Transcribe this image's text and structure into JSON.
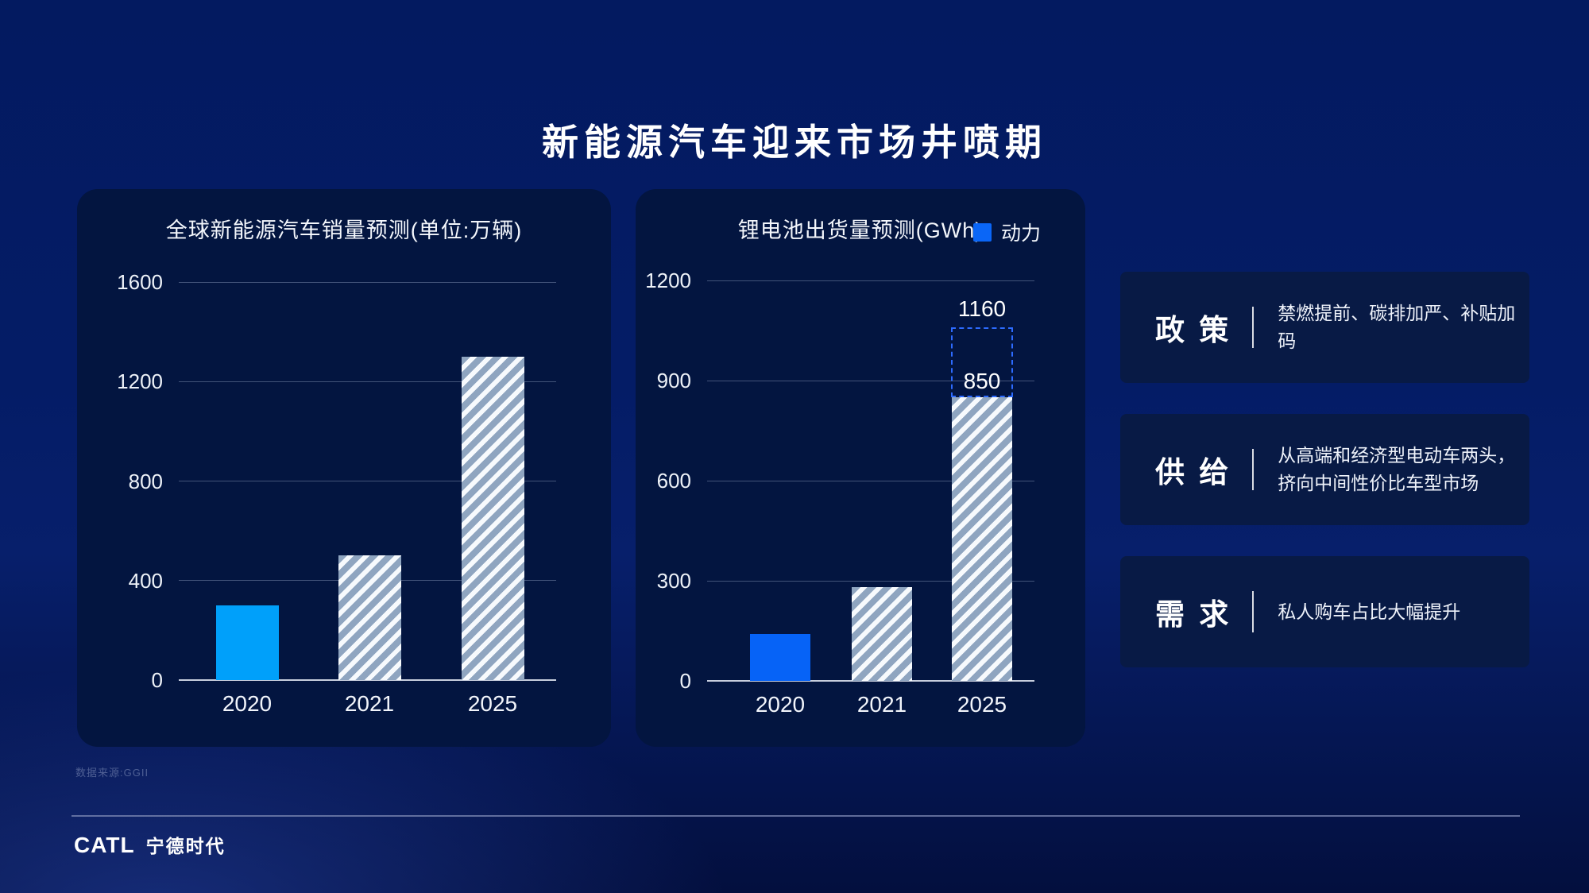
{
  "page": {
    "title": "新能源汽车迎来市场井喷期",
    "source_note": "数据来源:GGII",
    "logo": {
      "latin": "CATL",
      "cjk": "宁德时代"
    }
  },
  "chart_data": [
    {
      "type": "bar",
      "title": "全球新能源汽车销量预测(单位:万辆)",
      "categories": [
        "2020",
        "2021",
        "2025"
      ],
      "values": [
        300,
        500,
        1300
      ],
      "bar_styles": [
        "solid",
        "hatch",
        "hatch"
      ],
      "solid_color": "#00a0fa",
      "ylim": [
        0,
        1600
      ],
      "yticks": [
        0,
        400,
        800,
        1200,
        1600
      ],
      "grid": true,
      "legend_position": "none"
    },
    {
      "type": "bar",
      "title": "锂电池出货量预测(GWh)",
      "legend": [
        {
          "label": "动力",
          "color": "#0a66f7"
        }
      ],
      "categories": [
        "2020",
        "2021",
        "2025"
      ],
      "values": [
        140,
        280,
        850
      ],
      "bar_styles": [
        "solid",
        "hatch",
        "hatch"
      ],
      "solid_color": "#0663f7",
      "ylim": [
        0,
        1200
      ],
      "yticks": [
        0,
        300,
        600,
        900,
        1200
      ],
      "grid": true,
      "legend_position": "top-right",
      "annotations": {
        "bar_value_label": "850",
        "dashed_box": {
          "from": 850,
          "to": 1060,
          "label": "1160",
          "color": "#2d6bff"
        }
      }
    }
  ],
  "factors": [
    {
      "label": "政 策",
      "desc_lines": [
        "禁燃提前、碳排加严、补贴加码"
      ]
    },
    {
      "label": "供 给",
      "desc_lines": [
        "从高端和经济型电动车两头，",
        "挤向中间性价比车型市场"
      ]
    },
    {
      "label": "需 求",
      "desc_lines": [
        "私人购车占比大幅提升"
      ]
    }
  ]
}
